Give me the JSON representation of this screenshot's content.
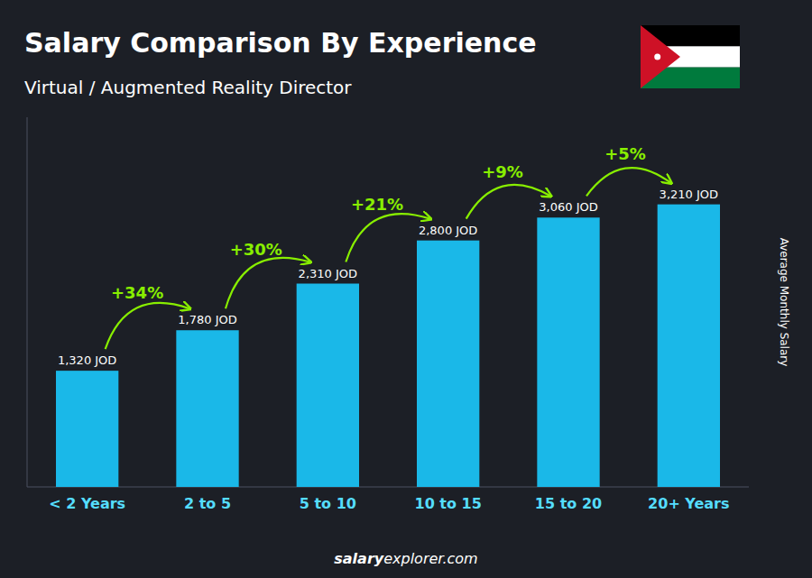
{
  "chart_data": {
    "type": "bar",
    "title": "Salary Comparison By Experience",
    "subtitle": "Virtual / Augmented Reality Director",
    "ylabel": "Average Monthly Salary",
    "categories": [
      "< 2 Years",
      "2 to 5",
      "5 to 10",
      "10 to 15",
      "15 to 20",
      "20+ Years"
    ],
    "values": [
      1320,
      1780,
      2310,
      2800,
      3060,
      3210
    ],
    "value_labels": [
      "1,320 JOD",
      "1,780 JOD",
      "2,310 JOD",
      "2,800 JOD",
      "3,060 JOD",
      "3,210 JOD"
    ],
    "data_labels": true,
    "color": "#1ab8e8",
    "ylim": [
      0,
      4200
    ],
    "tick_labels": "x",
    "grid": false,
    "annotations": [
      {
        "text": "+34%",
        "color": "#88ee00"
      },
      {
        "text": "+30%",
        "color": "#88ee00"
      },
      {
        "text": "+21%",
        "color": "#88ee00"
      },
      {
        "text": "+9%",
        "color": "#88ee00"
      },
      {
        "text": "+5%",
        "color": "#88ee00"
      }
    ],
    "footer": [
      "salary",
      "explorer.com"
    ]
  }
}
